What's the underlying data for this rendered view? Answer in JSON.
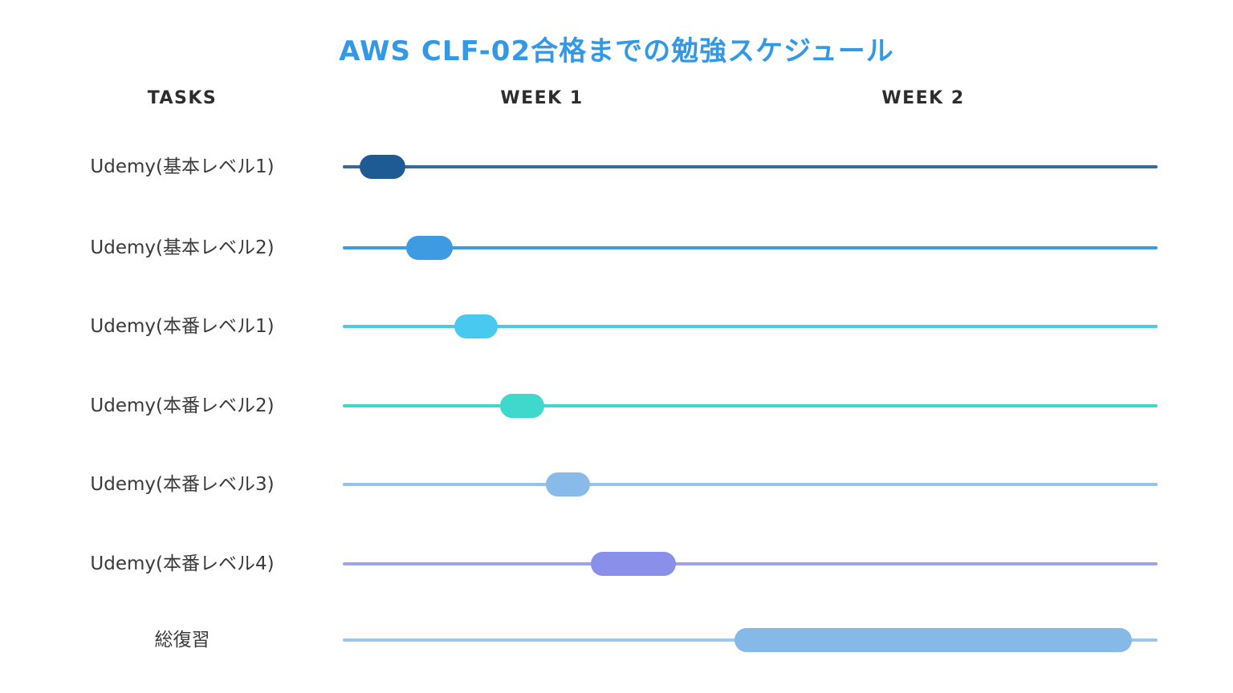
{
  "title": {
    "text": "AWS CLF-02合格までの勉強スケジュール",
    "color": "#3399e6"
  },
  "columns": {
    "tasks_label": "TASKS",
    "week1_label": "WEEK 1",
    "week2_label": "WEEK 2"
  },
  "chart_data": {
    "type": "bar",
    "subtype": "gantt",
    "title": "AWS CLF-02合格までの勉強スケジュール",
    "x_axis": {
      "unit": "days",
      "range": [
        0,
        14
      ],
      "week_headers": [
        "WEEK 1",
        "WEEK 2"
      ],
      "gridlines": false
    },
    "legend": "none",
    "tasks": [
      {
        "label": "Udemy(基本レベル1)",
        "start_day": 0.3,
        "end_day": 1.1,
        "start_pct": 2.07,
        "end_pct": 7.69,
        "bar_color": "#1e5b94",
        "line_color": "#336a9f"
      },
      {
        "label": "Udemy(基本レベル2)",
        "start_day": 1.1,
        "end_day": 1.9,
        "start_pct": 7.78,
        "end_pct": 13.49,
        "bar_color": "#3e9ae1",
        "line_color": "#3e9ae1"
      },
      {
        "label": "Udemy(本番レベル1)",
        "start_day": 1.9,
        "end_day": 2.7,
        "start_pct": 13.69,
        "end_pct": 19.01,
        "bar_color": "#47c9f0",
        "line_color": "#47c9f0"
      },
      {
        "label": "Udemy(本番レベル2)",
        "start_day": 2.7,
        "end_day": 3.5,
        "start_pct": 19.31,
        "end_pct": 24.73,
        "bar_color": "#3fd8cd",
        "line_color": "#3fd8cd"
      },
      {
        "label": "Udemy(本番レベル3)",
        "start_day": 3.5,
        "end_day": 4.2,
        "start_pct": 24.93,
        "end_pct": 30.35,
        "bar_color": "#88bbe9",
        "line_color": "#95c3ec"
      },
      {
        "label": "Udemy(本番レベル4)",
        "start_day": 4.3,
        "end_day": 5.7,
        "start_pct": 30.44,
        "end_pct": 40.88,
        "bar_color": "#8a90e9",
        "line_color": "#9aa3ec"
      },
      {
        "label": "総復習",
        "start_day": 6.7,
        "end_day": 13.6,
        "start_pct": 48.08,
        "end_pct": 96.85,
        "bar_color": "#85b9e8",
        "line_color": "#9fc6ec"
      }
    ]
  }
}
